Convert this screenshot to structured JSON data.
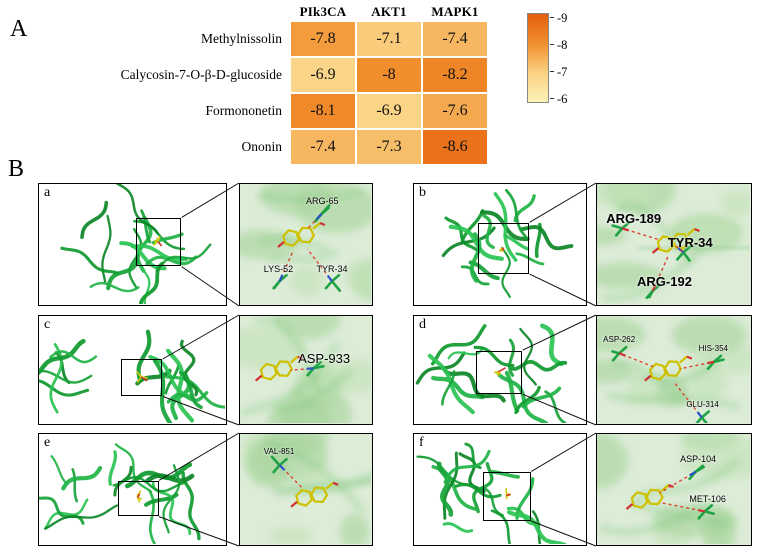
{
  "figure": {
    "panel_a_label": "A",
    "panel_b_label": "B"
  },
  "chart_data": {
    "type": "heatmap",
    "columns": [
      "PIk3CA",
      "AKT1",
      "MAPK1"
    ],
    "rows": [
      "Methylnissolin",
      "Calycosin-7-O-β-D-glucoside",
      "Formononetin",
      "Ononin"
    ],
    "values": [
      [
        -7.8,
        -7.1,
        -7.4
      ],
      [
        -6.9,
        -8,
        -8.2
      ],
      [
        -8.1,
        -6.9,
        -7.6
      ],
      [
        -7.4,
        -7.3,
        -8.6
      ]
    ],
    "cell_labels": [
      [
        "-7.8",
        "-7.1",
        "-7.4"
      ],
      [
        "-6.9",
        "-8",
        "-8.2"
      ],
      [
        "-8.1",
        "-6.9",
        "-7.6"
      ],
      [
        "-7.4",
        "-7.3",
        "-8.6"
      ]
    ],
    "colorbar_ticks": [
      "-9",
      "-8",
      "-7",
      "-6"
    ],
    "color_scale": {
      "stops": [
        {
          "v": -9,
          "c": "#e45f10"
        },
        {
          "v": -8,
          "c": "#f08e2c"
        },
        {
          "v": -7,
          "c": "#fad283"
        },
        {
          "v": -6,
          "c": "#fdf2b6"
        }
      ]
    },
    "legend_position": "right",
    "grid": true
  },
  "panels": [
    {
      "id": "a",
      "residues": [
        "ARG-65",
        "LYS-52",
        "TYR-34"
      ]
    },
    {
      "id": "b",
      "residues": [
        "ARG-189",
        "TYR-34",
        "ARG-192"
      ]
    },
    {
      "id": "c",
      "residues": [
        "ASP-933"
      ]
    },
    {
      "id": "d",
      "residues": [
        "ASP-262",
        "HIS-354",
        "GLU-314"
      ]
    },
    {
      "id": "e",
      "residues": [
        "VAL-851"
      ]
    },
    {
      "id": "f",
      "residues": [
        "ASP-104",
        "MET-106"
      ]
    }
  ]
}
